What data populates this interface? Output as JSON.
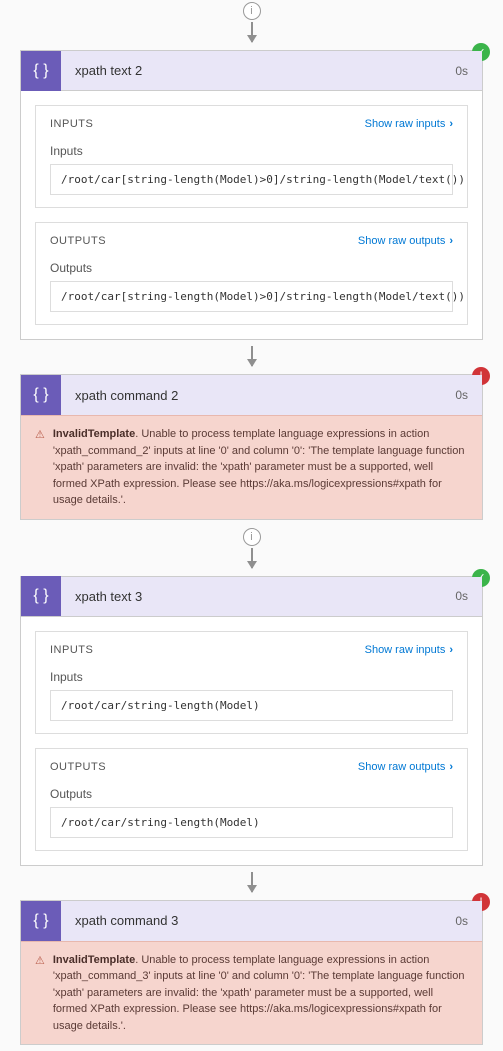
{
  "actions": [
    {
      "title": "xpath text 2",
      "time": "0s",
      "status": "success",
      "inputs_label": "INPUTS",
      "show_raw_inputs": "Show raw inputs",
      "inputs_field_label": "Inputs",
      "inputs_value": "/root/car[string-length(Model)>0]/string-length(Model/text())",
      "outputs_label": "OUTPUTS",
      "show_raw_outputs": "Show raw outputs",
      "outputs_field_label": "Outputs",
      "outputs_value": "/root/car[string-length(Model)>0]/string-length(Model/text())"
    },
    {
      "title": "xpath command 2",
      "time": "0s",
      "status": "error",
      "error_title": "InvalidTemplate",
      "error_text": ". Unable to process template language expressions in action 'xpath_command_2' inputs at line '0' and column '0': 'The template language function 'xpath' parameters are invalid: the 'xpath' parameter must be a supported, well formed XPath expression. Please see https://aka.ms/logicexpressions#xpath for usage details.'."
    },
    {
      "title": "xpath text 3",
      "time": "0s",
      "status": "success",
      "inputs_label": "INPUTS",
      "show_raw_inputs": "Show raw inputs",
      "inputs_field_label": "Inputs",
      "inputs_value": "/root/car/string-length(Model)",
      "outputs_label": "OUTPUTS",
      "show_raw_outputs": "Show raw outputs",
      "outputs_field_label": "Outputs",
      "outputs_value": "/root/car/string-length(Model)"
    },
    {
      "title": "xpath command 3",
      "time": "0s",
      "status": "error",
      "error_title": "InvalidTemplate",
      "error_text": ". Unable to process template language expressions in action 'xpath_command_3' inputs at line '0' and column '0': 'The template language function 'xpath' parameters are invalid: the 'xpath' parameter must be a supported, well formed XPath expression. Please see https://aka.ms/logicexpressions#xpath for usage details.'."
    }
  ],
  "colors": {
    "header_bg": "#e9e6f7",
    "icon_bg": "#6b5cb8",
    "success": "#3bb44a",
    "error": "#d13438",
    "error_box_bg": "#f6d5ce",
    "link": "#0078d4"
  }
}
